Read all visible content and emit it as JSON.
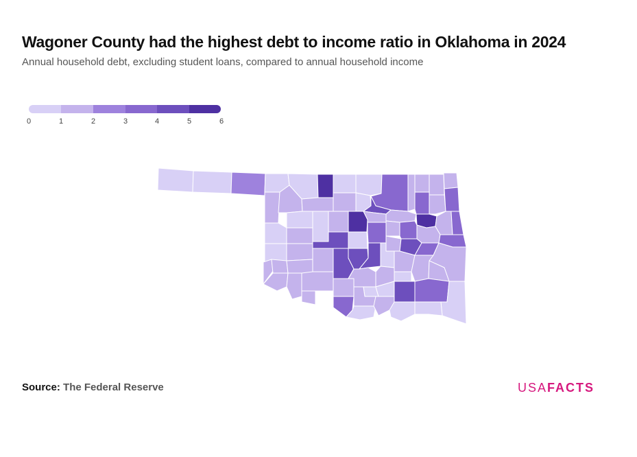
{
  "title": "Wagoner County had the highest debt to income ratio in Oklahoma in 2024",
  "subtitle": "Annual household debt, excluding student loans, compared to annual household income",
  "legend": {
    "ticks": [
      "0",
      "1",
      "2",
      "3",
      "4",
      "5",
      "6"
    ],
    "colors": [
      "#d8d0f6",
      "#c4b3ec",
      "#9e82dd",
      "#8868cf",
      "#6d4fbd",
      "#4e30a2"
    ]
  },
  "source": {
    "label": "Source:",
    "value": "The Federal Reserve"
  },
  "logo": {
    "part1": "USA",
    "part2": "FACTS",
    "color": "#d6187e"
  },
  "map": {
    "region": "Oklahoma",
    "highlight": "Wagoner County",
    "stroke": "#ffffff"
  }
}
